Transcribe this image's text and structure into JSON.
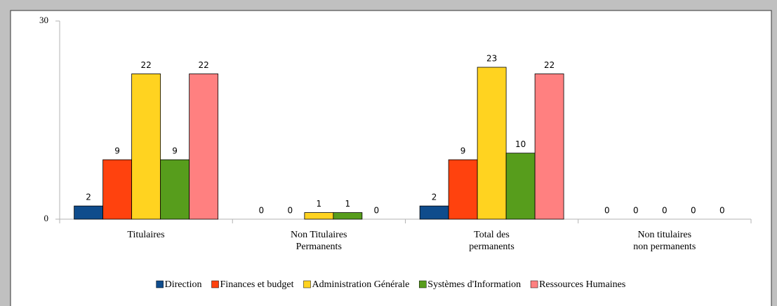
{
  "chart_data": {
    "type": "bar",
    "categories": [
      "Titulaires",
      "Non Titulaires\nPermanents",
      "Total des\npermanents",
      "Non titulaires\nnon permanents"
    ],
    "series": [
      {
        "name": "Direction",
        "color": "#0f4c8c",
        "values": [
          2,
          0,
          2,
          0
        ]
      },
      {
        "name": "Finances et budget",
        "color": "#ff420e",
        "values": [
          9,
          0,
          9,
          0
        ]
      },
      {
        "name": "Administration Générale",
        "color": "#ffd320",
        "values": [
          22,
          1,
          23,
          0
        ]
      },
      {
        "name": "Systèmes d'Information",
        "color": "#579d1c",
        "values": [
          9,
          1,
          10,
          0
        ]
      },
      {
        "name": "Ressources Humaines",
        "color": "#ff8080",
        "values": [
          22,
          0,
          22,
          0
        ]
      }
    ],
    "ylim": [
      0,
      30
    ],
    "yticks": [
      0,
      30
    ],
    "legend": "bottom"
  }
}
